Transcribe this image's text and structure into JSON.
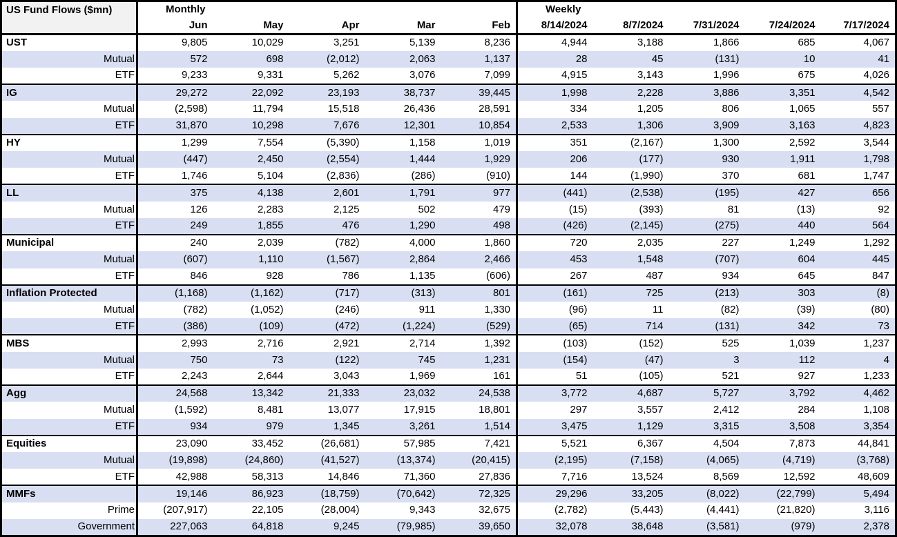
{
  "colors": {
    "stripe": "#D9DFF2",
    "title_cell_bg": "#F2F2F2",
    "border": "#000000",
    "text": "#000000"
  },
  "table": {
    "title": "US Fund Flows ($mn)",
    "monthly_label": "Monthly",
    "weekly_label": "Weekly",
    "monthly_columns": [
      "Jun",
      "May",
      "Apr",
      "Mar",
      "Feb"
    ],
    "weekly_columns": [
      "8/14/2024",
      "8/7/2024",
      "7/31/2024",
      "7/24/2024",
      "7/17/2024"
    ],
    "groups": [
      {
        "name": "UST",
        "rows": [
          {
            "label": "UST",
            "values": [
              "9,805",
              "10,029",
              "3,251",
              "5,139",
              "8,236",
              "4,944",
              "3,188",
              "1,866",
              "685",
              "4,067"
            ]
          },
          {
            "label": "Mutual",
            "values": [
              "572",
              "698",
              "(2,012)",
              "2,063",
              "1,137",
              "28",
              "45",
              "(131)",
              "10",
              "41"
            ]
          },
          {
            "label": "ETF",
            "values": [
              "9,233",
              "9,331",
              "5,262",
              "3,076",
              "7,099",
              "4,915",
              "3,143",
              "1,996",
              "675",
              "4,026"
            ]
          }
        ]
      },
      {
        "name": "IG",
        "rows": [
          {
            "label": "IG",
            "values": [
              "29,272",
              "22,092",
              "23,193",
              "38,737",
              "39,445",
              "1,998",
              "2,228",
              "3,886",
              "3,351",
              "4,542"
            ]
          },
          {
            "label": "Mutual",
            "values": [
              "(2,598)",
              "11,794",
              "15,518",
              "26,436",
              "28,591",
              "334",
              "1,205",
              "806",
              "1,065",
              "557"
            ]
          },
          {
            "label": "ETF",
            "values": [
              "31,870",
              "10,298",
              "7,676",
              "12,301",
              "10,854",
              "2,533",
              "1,306",
              "3,909",
              "3,163",
              "4,823"
            ]
          }
        ]
      },
      {
        "name": "HY",
        "rows": [
          {
            "label": "HY",
            "values": [
              "1,299",
              "7,554",
              "(5,390)",
              "1,158",
              "1,019",
              "351",
              "(2,167)",
              "1,300",
              "2,592",
              "3,544"
            ]
          },
          {
            "label": "Mutual",
            "values": [
              "(447)",
              "2,450",
              "(2,554)",
              "1,444",
              "1,929",
              "206",
              "(177)",
              "930",
              "1,911",
              "1,798"
            ]
          },
          {
            "label": "ETF",
            "values": [
              "1,746",
              "5,104",
              "(2,836)",
              "(286)",
              "(910)",
              "144",
              "(1,990)",
              "370",
              "681",
              "1,747"
            ]
          }
        ]
      },
      {
        "name": "LL",
        "rows": [
          {
            "label": "LL",
            "values": [
              "375",
              "4,138",
              "2,601",
              "1,791",
              "977",
              "(441)",
              "(2,538)",
              "(195)",
              "427",
              "656"
            ]
          },
          {
            "label": "Mutual",
            "values": [
              "126",
              "2,283",
              "2,125",
              "502",
              "479",
              "(15)",
              "(393)",
              "81",
              "(13)",
              "92"
            ]
          },
          {
            "label": "ETF",
            "values": [
              "249",
              "1,855",
              "476",
              "1,290",
              "498",
              "(426)",
              "(2,145)",
              "(275)",
              "440",
              "564"
            ]
          }
        ]
      },
      {
        "name": "Municipal",
        "rows": [
          {
            "label": "Municipal",
            "values": [
              "240",
              "2,039",
              "(782)",
              "4,000",
              "1,860",
              "720",
              "2,035",
              "227",
              "1,249",
              "1,292"
            ]
          },
          {
            "label": "Mutual",
            "values": [
              "(607)",
              "1,110",
              "(1,567)",
              "2,864",
              "2,466",
              "453",
              "1,548",
              "(707)",
              "604",
              "445"
            ]
          },
          {
            "label": "ETF",
            "values": [
              "846",
              "928",
              "786",
              "1,135",
              "(606)",
              "267",
              "487",
              "934",
              "645",
              "847"
            ]
          }
        ]
      },
      {
        "name": "Inflation Protected",
        "rows": [
          {
            "label": "Inflation Protected",
            "values": [
              "(1,168)",
              "(1,162)",
              "(717)",
              "(313)",
              "801",
              "(161)",
              "725",
              "(213)",
              "303",
              "(8)"
            ]
          },
          {
            "label": "Mutual",
            "values": [
              "(782)",
              "(1,052)",
              "(246)",
              "911",
              "1,330",
              "(96)",
              "11",
              "(82)",
              "(39)",
              "(80)"
            ]
          },
          {
            "label": "ETF",
            "values": [
              "(386)",
              "(109)",
              "(472)",
              "(1,224)",
              "(529)",
              "(65)",
              "714",
              "(131)",
              "342",
              "73"
            ]
          }
        ]
      },
      {
        "name": "MBS",
        "rows": [
          {
            "label": "MBS",
            "values": [
              "2,993",
              "2,716",
              "2,921",
              "2,714",
              "1,392",
              "(103)",
              "(152)",
              "525",
              "1,039",
              "1,237"
            ]
          },
          {
            "label": "Mutual",
            "values": [
              "750",
              "73",
              "(122)",
              "745",
              "1,231",
              "(154)",
              "(47)",
              "3",
              "112",
              "4"
            ]
          },
          {
            "label": "ETF",
            "values": [
              "2,243",
              "2,644",
              "3,043",
              "1,969",
              "161",
              "51",
              "(105)",
              "521",
              "927",
              "1,233"
            ]
          }
        ]
      },
      {
        "name": "Agg",
        "rows": [
          {
            "label": "Agg",
            "values": [
              "24,568",
              "13,342",
              "21,333",
              "23,032",
              "24,538",
              "3,772",
              "4,687",
              "5,727",
              "3,792",
              "4,462"
            ]
          },
          {
            "label": "Mutual",
            "values": [
              "(1,592)",
              "8,481",
              "13,077",
              "17,915",
              "18,801",
              "297",
              "3,557",
              "2,412",
              "284",
              "1,108"
            ]
          },
          {
            "label": "ETF",
            "values": [
              "934",
              "979",
              "1,345",
              "3,261",
              "1,514",
              "3,475",
              "1,129",
              "3,315",
              "3,508",
              "3,354"
            ]
          }
        ]
      },
      {
        "name": "Equities",
        "rows": [
          {
            "label": "Equities",
            "values": [
              "23,090",
              "33,452",
              "(26,681)",
              "57,985",
              "7,421",
              "5,521",
              "6,367",
              "4,504",
              "7,873",
              "44,841"
            ]
          },
          {
            "label": "Mutual",
            "values": [
              "(19,898)",
              "(24,860)",
              "(41,527)",
              "(13,374)",
              "(20,415)",
              "(2,195)",
              "(7,158)",
              "(4,065)",
              "(4,719)",
              "(3,768)"
            ]
          },
          {
            "label": "ETF",
            "values": [
              "42,988",
              "58,313",
              "14,846",
              "71,360",
              "27,836",
              "7,716",
              "13,524",
              "8,569",
              "12,592",
              "48,609"
            ]
          }
        ]
      },
      {
        "name": "MMFs",
        "rows": [
          {
            "label": "MMFs",
            "values": [
              "19,146",
              "86,923",
              "(18,759)",
              "(70,642)",
              "72,325",
              "29,296",
              "33,205",
              "(8,022)",
              "(22,799)",
              "5,494"
            ]
          },
          {
            "label": "Prime",
            "values": [
              "(207,917)",
              "22,105",
              "(28,004)",
              "9,343",
              "32,675",
              "(2,782)",
              "(5,443)",
              "(4,441)",
              "(21,820)",
              "3,116"
            ]
          },
          {
            "label": "Government",
            "values": [
              "227,063",
              "64,818",
              "9,245",
              "(79,985)",
              "39,650",
              "32,078",
              "38,648",
              "(3,581)",
              "(979)",
              "2,378"
            ]
          }
        ]
      }
    ]
  }
}
